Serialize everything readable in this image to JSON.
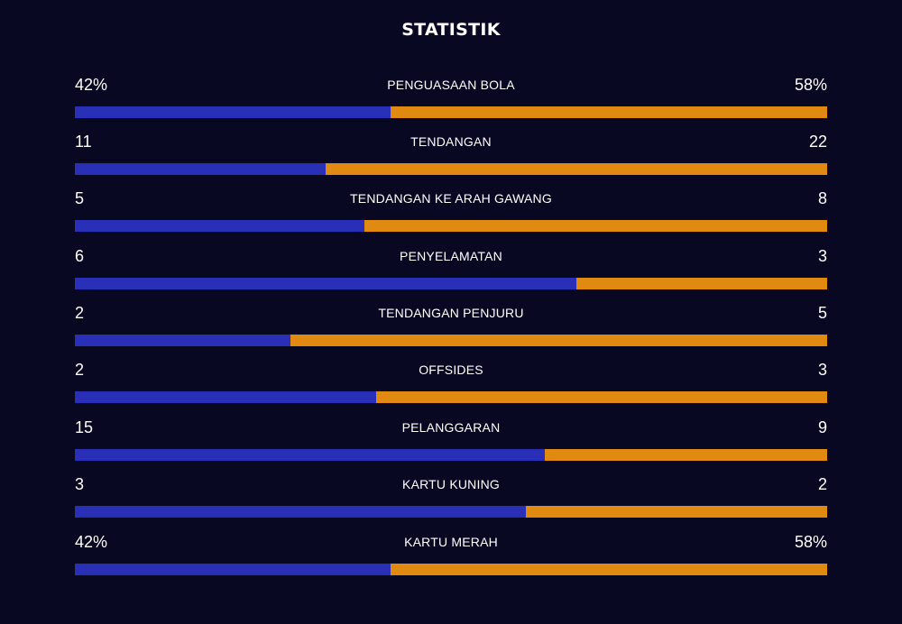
{
  "title": "STATISTIK",
  "colors": {
    "background": "#080823",
    "home_bar": "#2a2fb8",
    "away_bar": "#e08a12",
    "text": "#ffffff"
  },
  "stats": [
    {
      "label": "PENGUASAAN BOLA",
      "home": "42%",
      "away": "58%",
      "home_share": 0.42
    },
    {
      "label": "TENDANGAN",
      "home": "11",
      "away": "22",
      "home_share": 0.333
    },
    {
      "label": "TENDANGAN KE ARAH GAWANG",
      "home": "5",
      "away": "8",
      "home_share": 0.385
    },
    {
      "label": "PENYELAMATAN",
      "home": "6",
      "away": "3",
      "home_share": 0.667
    },
    {
      "label": "TENDANGAN PENJURU",
      "home": "2",
      "away": "5",
      "home_share": 0.286
    },
    {
      "label": "OFFSIDES",
      "home": "2",
      "away": "3",
      "home_share": 0.4
    },
    {
      "label": "PELANGGARAN",
      "home": "15",
      "away": "9",
      "home_share": 0.625
    },
    {
      "label": "KARTU KUNING",
      "home": "3",
      "away": "2",
      "home_share": 0.6
    },
    {
      "label": "KARTU MERAH",
      "home": "42%",
      "away": "58%",
      "home_share": 0.42
    }
  ]
}
